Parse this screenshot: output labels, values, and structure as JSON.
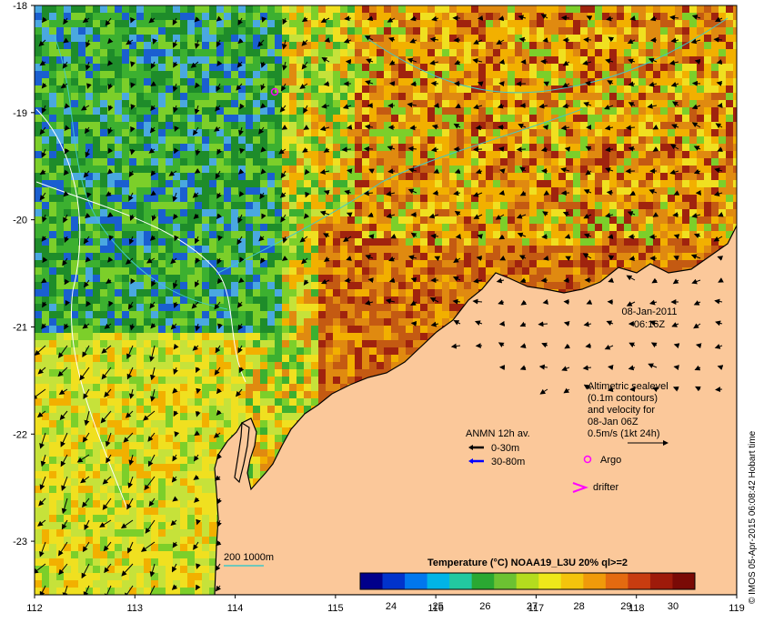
{
  "map": {
    "date": "08-Jan-2011",
    "time": "06:16Z",
    "lon_ticks": [
      "112",
      "113",
      "114",
      "115",
      "116",
      "117",
      "118",
      "119"
    ],
    "lat_ticks": [
      "-18",
      "-19",
      "-20",
      "-21",
      "-22",
      "-23"
    ],
    "lon_range": [
      112,
      119
    ],
    "lat_range": [
      -23.5,
      -18
    ],
    "ocean_colors": [
      "#1e8c2a",
      "#3cb030",
      "#7ccf2a",
      "#c6e23a",
      "#f0e020",
      "#f2b000",
      "#e08a10",
      "#c45a12",
      "#a0230e",
      "#4aa8e0",
      "#1a5fd0"
    ],
    "land_color": "#fbc89a"
  },
  "sealevel_note": {
    "line1": "Altimetric sealevel",
    "line2": "(0.1m contours)",
    "line3": "and velocity for",
    "line4": "08-Jan 06Z",
    "line5": "0.5m/s (1kt 24h)"
  },
  "legend": {
    "anmn_title": "ANMN 12h av.",
    "anmn_shallow": "0-30m",
    "anmn_deep": "30-80m",
    "argo": "Argo",
    "drifter": "drifter",
    "shallow_color": "#000000",
    "deep_color": "#0000ff",
    "argo_color": "#ff00ff",
    "drifter_color": "#ff00ff"
  },
  "isobath": {
    "label": "200  1000m",
    "color": "#40c8c8"
  },
  "colorbar": {
    "title": "Temperature (°C) NOAA19_L3U 20% ql>=2",
    "ticks": [
      "24",
      "25",
      "26",
      "27",
      "28",
      "29",
      "30"
    ],
    "colors": [
      "#00008b",
      "#0033cc",
      "#0077ee",
      "#00b4e6",
      "#22c8a0",
      "#2aa832",
      "#6cc232",
      "#b4dc1e",
      "#eee81a",
      "#f4c40c",
      "#f09a0a",
      "#e46a10",
      "#c83c10",
      "#9e1a0a",
      "#7a0a06"
    ]
  },
  "credit": "© IMOS 05-Apr-2015 06:08:42 Hobart time"
}
